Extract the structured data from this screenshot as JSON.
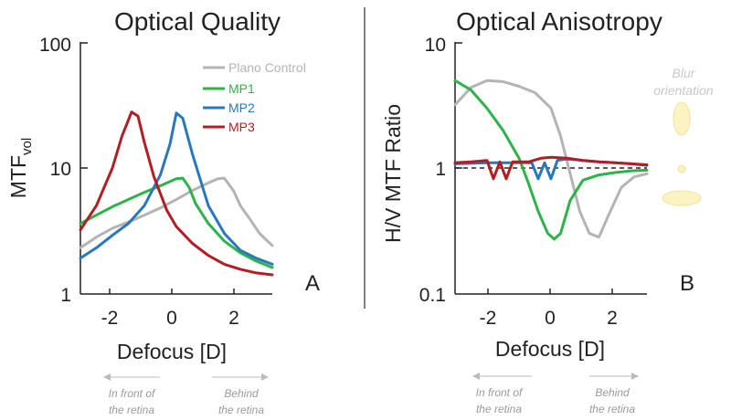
{
  "chart_data": [
    {
      "type": "line",
      "title": "Optical Quality",
      "xlabel": "Defocus [D]",
      "ylabel": "MTF",
      "ylabel_sub": "vol",
      "yscale": "log",
      "xlim": [
        -3,
        3
      ],
      "ylim": [
        1,
        100
      ],
      "xticks": [
        "-2",
        "0",
        "2"
      ],
      "yticks": [
        "1",
        "10",
        "100"
      ],
      "panel_label": "A",
      "legend_position": "top-right",
      "series": [
        {
          "name": "Plano Control",
          "color": "#b4b4b4",
          "x": [
            -3,
            -2.5,
            -2,
            -1.5,
            -1,
            -0.5,
            0,
            0.5,
            1,
            1.3,
            1.5,
            1.8,
            2,
            2.3,
            2.6,
            3
          ],
          "y": [
            2.3,
            2.8,
            3.3,
            3.7,
            4.2,
            4.8,
            5.6,
            6.6,
            7.6,
            8.2,
            8.3,
            6.5,
            5.0,
            3.9,
            3.0,
            2.4
          ]
        },
        {
          "name": "MP1",
          "color": "#2db34a",
          "x": [
            -3,
            -2.5,
            -2,
            -1.5,
            -1,
            -0.5,
            0,
            0.2,
            0.4,
            0.6,
            1,
            1.5,
            2,
            2.5,
            3
          ],
          "y": [
            3.6,
            4.2,
            4.9,
            5.6,
            6.4,
            7.2,
            8.2,
            8.3,
            7.0,
            5.2,
            3.6,
            2.6,
            2.1,
            1.8,
            1.6
          ]
        },
        {
          "name": "MP2",
          "color": "#2878c0",
          "x": [
            -3,
            -2.5,
            -2,
            -1.5,
            -1,
            -0.5,
            -0.2,
            0,
            0.2,
            0.5,
            1,
            1.5,
            2,
            2.5,
            3
          ],
          "y": [
            1.9,
            2.3,
            2.9,
            3.6,
            5.0,
            8.8,
            15.5,
            27.5,
            25.0,
            13.0,
            5.0,
            3.0,
            2.2,
            1.9,
            1.7
          ]
        },
        {
          "name": "MP3",
          "color": "#b21e23",
          "x": [
            -3,
            -2.5,
            -2,
            -1.7,
            -1.4,
            -1.2,
            -1,
            -0.7,
            -0.3,
            0,
            0.5,
            1,
            1.5,
            2,
            2.5,
            3
          ],
          "y": [
            3.2,
            5.0,
            10.0,
            18.0,
            28.0,
            26.0,
            16.0,
            8.5,
            4.6,
            3.4,
            2.5,
            2.0,
            1.7,
            1.55,
            1.45,
            1.4
          ]
        }
      ]
    },
    {
      "type": "line",
      "title": "Optical Anisotropy",
      "xlabel": "Defocus [D]",
      "ylabel": "H/V MTF Ratio",
      "yscale": "log",
      "xlim": [
        -3,
        3
      ],
      "ylim": [
        0.1,
        10
      ],
      "xticks": [
        "-2",
        "0",
        "2"
      ],
      "yticks": [
        "0.1",
        "1",
        "10"
      ],
      "panel_label": "B",
      "reference_line": 1,
      "series": [
        {
          "name": "Plano Control",
          "color": "#b4b4b4",
          "x": [
            -3,
            -2.5,
            -2,
            -1.5,
            -1,
            -0.5,
            0,
            0.3,
            0.6,
            0.9,
            1.2,
            1.5,
            1.8,
            2.2,
            2.6,
            3
          ],
          "y": [
            3.2,
            4.4,
            5.0,
            4.9,
            4.5,
            4.0,
            3.0,
            1.8,
            0.9,
            0.45,
            0.3,
            0.28,
            0.42,
            0.7,
            0.85,
            0.9
          ]
        },
        {
          "name": "MP1",
          "color": "#2db34a",
          "x": [
            -3,
            -2.5,
            -2,
            -1.5,
            -1,
            -0.7,
            -0.4,
            -0.1,
            0.1,
            0.3,
            0.6,
            1,
            1.5,
            2,
            2.5,
            3
          ],
          "y": [
            5.0,
            4.2,
            3.0,
            2.0,
            1.2,
            0.75,
            0.45,
            0.3,
            0.27,
            0.3,
            0.55,
            0.8,
            0.88,
            0.92,
            0.95,
            0.96
          ]
        },
        {
          "name": "MP2",
          "color": "#2878c0",
          "x": [
            -3,
            -2,
            -1,
            -0.6,
            -0.4,
            -0.2,
            0,
            0.2,
            0.5,
            1,
            1.5,
            2,
            2.5,
            3
          ],
          "y": [
            1.08,
            1.1,
            1.1,
            1.1,
            0.82,
            1.1,
            0.82,
            1.15,
            1.18,
            1.15,
            1.12,
            1.1,
            1.08,
            1.05
          ]
        },
        {
          "name": "MP3",
          "color": "#b21e23",
          "x": [
            -3,
            -2.5,
            -2,
            -1.8,
            -1.6,
            -1.4,
            -1.2,
            -1.0,
            -0.7,
            -0.3,
            0,
            0.5,
            1,
            1.5,
            2,
            2.5,
            3
          ],
          "y": [
            1.1,
            1.12,
            1.15,
            0.82,
            1.12,
            0.82,
            1.12,
            1.12,
            1.12,
            1.2,
            1.22,
            1.2,
            1.15,
            1.12,
            1.1,
            1.08,
            1.06
          ]
        }
      ]
    }
  ],
  "annotations": {
    "a_front": "In front of\nthe retina",
    "a_behind": "Behind\nthe retina",
    "b_front": "In front of\nthe retina",
    "b_behind": "Behind\nthe retina",
    "blur_orientation": "Blur\norientation"
  },
  "colors": {
    "axis": "#222222",
    "divider": "#555555",
    "note_gray": "#bbbbbb",
    "ellipse_fill": "#fbf3c2",
    "ellipse_stroke": "#ece29f"
  }
}
